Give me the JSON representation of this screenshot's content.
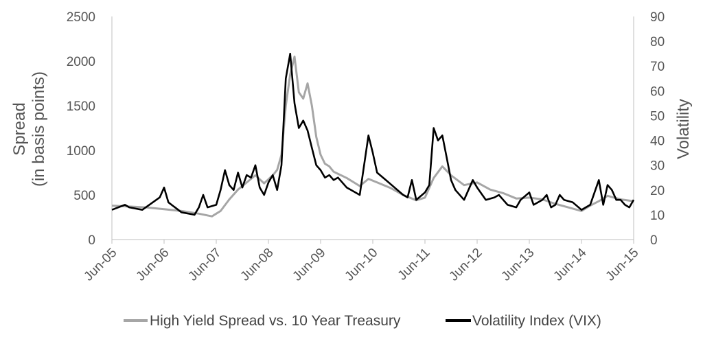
{
  "chart_data": {
    "type": "line",
    "x_ticks": [
      "Jun-05",
      "Jun-06",
      "Jun-07",
      "Jun-08",
      "Jun-09",
      "Jun-10",
      "Jun-11",
      "Jun-12",
      "Jun-13",
      "Jun-14",
      "Jun-15"
    ],
    "x_range": [
      "Jun-05",
      "Jun-15"
    ],
    "y_left": {
      "label_line1": "Spread",
      "label_line2": "(in basis points)",
      "ticks": [
        0,
        500,
        1000,
        1500,
        2000,
        2500
      ],
      "range": [
        0,
        2500
      ]
    },
    "y_right": {
      "label": "Volatility",
      "ticks": [
        0,
        10,
        20,
        30,
        40,
        50,
        60,
        70,
        80,
        90
      ],
      "range": [
        0,
        90
      ]
    },
    "legend_position": "bottom",
    "series": [
      {
        "name": "High Yield Spread vs. 10 Year Treasury",
        "axis": "left",
        "color": "#a6a6a6",
        "points": [
          [
            "Jun-05",
            380
          ],
          [
            "Oct-05",
            370
          ],
          [
            "Feb-06",
            360
          ],
          [
            "Jun-06",
            340
          ],
          [
            "Oct-06",
            320
          ],
          [
            "Feb-07",
            290
          ],
          [
            "May-07",
            260
          ],
          [
            "Jul-07",
            320
          ],
          [
            "Sep-07",
            450
          ],
          [
            "Nov-07",
            560
          ],
          [
            "Jan-08",
            640
          ],
          [
            "Mar-08",
            720
          ],
          [
            "May-08",
            630
          ],
          [
            "Jul-08",
            720
          ],
          [
            "Aug-08",
            780
          ],
          [
            "Sep-08",
            950
          ],
          [
            "Oct-08",
            1500
          ],
          [
            "Nov-08",
            1850
          ],
          [
            "Dec-08",
            2050
          ],
          [
            "Jan-09",
            1650
          ],
          [
            "Feb-09",
            1580
          ],
          [
            "Mar-09",
            1750
          ],
          [
            "Apr-09",
            1500
          ],
          [
            "May-09",
            1150
          ],
          [
            "Jun-09",
            950
          ],
          [
            "Jul-09",
            850
          ],
          [
            "Aug-09",
            820
          ],
          [
            "Sep-09",
            760
          ],
          [
            "Dec-09",
            690
          ],
          [
            "Mar-10",
            600
          ],
          [
            "May-10",
            680
          ],
          [
            "Jul-10",
            640
          ],
          [
            "Oct-10",
            580
          ],
          [
            "Jan-11",
            500
          ],
          [
            "Apr-11",
            440
          ],
          [
            "Jun-11",
            470
          ],
          [
            "Aug-11",
            690
          ],
          [
            "Oct-11",
            820
          ],
          [
            "Dec-11",
            720
          ],
          [
            "Mar-12",
            610
          ],
          [
            "Jun-12",
            640
          ],
          [
            "Sep-12",
            560
          ],
          [
            "Dec-12",
            520
          ],
          [
            "Mar-13",
            460
          ],
          [
            "Jun-13",
            470
          ],
          [
            "Sep-13",
            450
          ],
          [
            "Dec-13",
            400
          ],
          [
            "Mar-14",
            360
          ],
          [
            "Jun-14",
            320
          ],
          [
            "Aug-14",
            380
          ],
          [
            "Oct-14",
            430
          ],
          [
            "Dec-14",
            490
          ],
          [
            "Mar-15",
            450
          ],
          [
            "Jun-15",
            430
          ]
        ]
      },
      {
        "name": "Volatility Index (VIX)",
        "axis": "right",
        "color": "#000000",
        "points": [
          [
            "Jun-05",
            12
          ],
          [
            "Sep-05",
            14
          ],
          [
            "Oct-05",
            13
          ],
          [
            "Jan-06",
            12
          ],
          [
            "May-06",
            17
          ],
          [
            "Jun-06",
            21
          ],
          [
            "Jul-06",
            15
          ],
          [
            "Oct-06",
            11
          ],
          [
            "Jan-07",
            10
          ],
          [
            "Feb-07",
            13
          ],
          [
            "Mar-07",
            18
          ],
          [
            "Apr-07",
            13
          ],
          [
            "Jun-07",
            14
          ],
          [
            "Jul-07",
            20
          ],
          [
            "Aug-07",
            28
          ],
          [
            "Sep-07",
            22
          ],
          [
            "Oct-07",
            20
          ],
          [
            "Nov-07",
            27
          ],
          [
            "Dec-07",
            21
          ],
          [
            "Jan-08",
            26
          ],
          [
            "Feb-08",
            25
          ],
          [
            "Mar-08",
            30
          ],
          [
            "Apr-08",
            21
          ],
          [
            "May-08",
            18
          ],
          [
            "Jun-08",
            23
          ],
          [
            "Jul-08",
            26
          ],
          [
            "Aug-08",
            20
          ],
          [
            "Sep-08",
            30
          ],
          [
            "Oct-08",
            65
          ],
          [
            "Nov-08",
            75
          ],
          [
            "Dec-08",
            55
          ],
          [
            "Jan-09",
            45
          ],
          [
            "Feb-09",
            48
          ],
          [
            "Mar-09",
            44
          ],
          [
            "Apr-09",
            37
          ],
          [
            "May-09",
            30
          ],
          [
            "Jun-09",
            28
          ],
          [
            "Jul-09",
            25
          ],
          [
            "Aug-09",
            26
          ],
          [
            "Sep-09",
            24
          ],
          [
            "Oct-09",
            25
          ],
          [
            "Dec-09",
            21
          ],
          [
            "Jan-10",
            20
          ],
          [
            "Mar-10",
            18
          ],
          [
            "May-10",
            42
          ],
          [
            "Jun-10",
            35
          ],
          [
            "Jul-10",
            27
          ],
          [
            "Sep-10",
            24
          ],
          [
            "Nov-10",
            21
          ],
          [
            "Jan-11",
            18
          ],
          [
            "Feb-11",
            17
          ],
          [
            "Mar-11",
            24
          ],
          [
            "Apr-11",
            16
          ],
          [
            "Jun-11",
            19
          ],
          [
            "Jul-11",
            22
          ],
          [
            "Aug-11",
            45
          ],
          [
            "Sep-11",
            40
          ],
          [
            "Oct-11",
            42
          ],
          [
            "Nov-11",
            33
          ],
          [
            "Dec-11",
            24
          ],
          [
            "Jan-12",
            20
          ],
          [
            "Mar-12",
            16
          ],
          [
            "May-12",
            24
          ],
          [
            "Jun-12",
            21
          ],
          [
            "Aug-12",
            16
          ],
          [
            "Oct-12",
            17
          ],
          [
            "Nov-12",
            18
          ],
          [
            "Dec-12",
            16
          ],
          [
            "Jan-13",
            14
          ],
          [
            "Mar-13",
            13
          ],
          [
            "Apr-13",
            16
          ],
          [
            "Jun-13",
            19
          ],
          [
            "Jul-13",
            14
          ],
          [
            "Aug-13",
            15
          ],
          [
            "Sep-13",
            16
          ],
          [
            "Oct-13",
            18
          ],
          [
            "Nov-13",
            13
          ],
          [
            "Dec-13",
            14
          ],
          [
            "Jan-14",
            18
          ],
          [
            "Feb-14",
            16
          ],
          [
            "Apr-14",
            15
          ],
          [
            "Jun-14",
            12
          ],
          [
            "Aug-14",
            14
          ],
          [
            "Oct-14",
            24
          ],
          [
            "Nov-14",
            14
          ],
          [
            "Dec-14",
            22
          ],
          [
            "Jan-15",
            20
          ],
          [
            "Feb-15",
            16
          ],
          [
            "Mar-15",
            16
          ],
          [
            "Apr-15",
            14
          ],
          [
            "May-15",
            13
          ],
          [
            "Jun-15",
            16
          ]
        ]
      }
    ]
  }
}
